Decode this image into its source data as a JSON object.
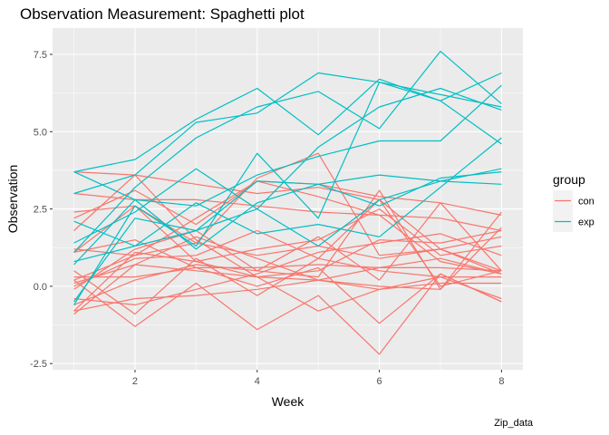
{
  "chart_data": {
    "type": "line",
    "title": "Observation Measurement: Spaghetti plot",
    "xlabel": "Week",
    "ylabel": "Observation",
    "caption": "Zip_data",
    "x": [
      1,
      2,
      3,
      4,
      5,
      6,
      7,
      8
    ],
    "xlim": [
      0.65,
      8.35
    ],
    "ylim": [
      -2.7,
      8.35
    ],
    "x_ticks": [
      2,
      4,
      6,
      8
    ],
    "y_ticks": [
      -2.5,
      0.0,
      2.5,
      5.0,
      7.5
    ],
    "y_tick_labels": [
      "-2.5",
      "0.0",
      "2.5",
      "5.0",
      "7.5"
    ],
    "grid": true,
    "legend": {
      "title": "group",
      "position": "right",
      "entries": [
        {
          "label": "con",
          "color": "#F8766D"
        },
        {
          "label": "exp",
          "color": "#00BFC4"
        }
      ]
    },
    "series": [
      {
        "group": "con",
        "values": [
          0.2,
          -1.3,
          0.1,
          -1.4,
          -0.3,
          -2.2,
          0.4,
          -0.5
        ]
      },
      {
        "group": "con",
        "values": [
          1.1,
          2.6,
          1.4,
          3.5,
          4.3,
          1.0,
          1.2,
          0.5
        ]
      },
      {
        "group": "con",
        "values": [
          -0.4,
          -0.6,
          -0.1,
          0.4,
          1.1,
          1.4,
          1.7,
          1.0
        ]
      },
      {
        "group": "con",
        "values": [
          1.8,
          3.6,
          1.5,
          0.3,
          -0.8,
          -0.1,
          0.3,
          -0.4
        ]
      },
      {
        "group": "con",
        "values": [
          0.1,
          0.7,
          1.6,
          0.9,
          0.2,
          0.0,
          -0.1,
          2.4
        ]
      },
      {
        "group": "con",
        "values": [
          3.0,
          2.8,
          2.8,
          2.6,
          2.4,
          2.3,
          2.2,
          1.8
        ]
      },
      {
        "group": "con",
        "values": [
          2.4,
          2.6,
          0.8,
          1.2,
          1.5,
          2.5,
          1.0,
          1.3
        ]
      },
      {
        "group": "con",
        "values": [
          -0.1,
          1.2,
          1.8,
          0.5,
          1.6,
          0.2,
          2.7,
          0.5
        ]
      },
      {
        "group": "con",
        "values": [
          -0.6,
          0.2,
          0.7,
          0.5,
          0.3,
          3.1,
          -0.1,
          1.9
        ]
      },
      {
        "group": "con",
        "values": [
          1.1,
          1.5,
          0.6,
          0.0,
          0.6,
          -1.2,
          0.4,
          -0.5
        ]
      },
      {
        "group": "con",
        "values": [
          0.0,
          0.9,
          1.0,
          1.8,
          0.9,
          0.5,
          0.3,
          0.3
        ]
      },
      {
        "group": "con",
        "values": [
          -0.8,
          -0.4,
          -0.3,
          -0.1,
          0.2,
          0.6,
          0.9,
          0.4
        ]
      },
      {
        "group": "con",
        "values": [
          0.5,
          -0.9,
          0.9,
          -0.3,
          0.9,
          2.8,
          0.0,
          0.5
        ]
      },
      {
        "group": "con",
        "values": [
          2.2,
          3.1,
          2.0,
          3.4,
          2.9,
          2.3,
          0.8,
          0.4
        ]
      },
      {
        "group": "con",
        "values": [
          0.3,
          0.3,
          0.6,
          0.6,
          0.7,
          0.6,
          0.6,
          0.5
        ]
      },
      {
        "group": "con",
        "values": [
          1.2,
          1.0,
          2.2,
          3.4,
          3.3,
          2.9,
          2.7,
          2.3
        ]
      },
      {
        "group": "con",
        "values": [
          3.7,
          3.6,
          3.3,
          3.0,
          3.2,
          2.8,
          1.2,
          1.6
        ]
      },
      {
        "group": "con",
        "values": [
          -0.9,
          0.7,
          0.5,
          0.3,
          0.2,
          -0.1,
          0.1,
          0.1
        ]
      },
      {
        "group": "con",
        "values": [
          0.2,
          1.0,
          1.4,
          1.0,
          1.3,
          0.9,
          1.2,
          0.4
        ]
      },
      {
        "group": "con",
        "values": [
          -0.8,
          1.1,
          0.8,
          0.3,
          0.5,
          1.5,
          1.4,
          1.8
        ]
      },
      {
        "group": "exp",
        "values": [
          3.7,
          4.1,
          5.4,
          6.4,
          4.9,
          6.7,
          6.0,
          6.9
        ]
      },
      {
        "group": "exp",
        "values": [
          1.1,
          3.2,
          4.8,
          5.8,
          6.3,
          5.1,
          7.6,
          5.9
        ]
      },
      {
        "group": "exp",
        "values": [
          3.0,
          3.6,
          5.3,
          5.6,
          6.9,
          6.6,
          6.2,
          5.8
        ]
      },
      {
        "group": "exp",
        "values": [
          -0.6,
          2.6,
          1.3,
          4.3,
          2.2,
          6.6,
          6.0,
          4.6
        ]
      },
      {
        "group": "exp",
        "values": [
          1.4,
          2.4,
          3.8,
          2.5,
          4.5,
          5.8,
          6.4,
          5.7
        ]
      },
      {
        "group": "exp",
        "values": [
          0.7,
          2.8,
          2.6,
          3.6,
          4.2,
          4.7,
          4.7,
          6.5
        ]
      },
      {
        "group": "exp",
        "values": [
          3.7,
          2.8,
          1.2,
          2.7,
          3.3,
          3.6,
          3.4,
          3.3
        ]
      },
      {
        "group": "exp",
        "values": [
          0.8,
          1.3,
          1.8,
          2.5,
          1.3,
          2.8,
          3.4,
          3.8
        ]
      },
      {
        "group": "exp",
        "values": [
          2.1,
          1.3,
          2.7,
          1.7,
          2.0,
          1.6,
          3.2,
          4.8
        ]
      },
      {
        "group": "exp",
        "values": [
          -0.5,
          2.2,
          1.8,
          3.4,
          3.3,
          2.6,
          3.5,
          3.7
        ]
      }
    ]
  }
}
